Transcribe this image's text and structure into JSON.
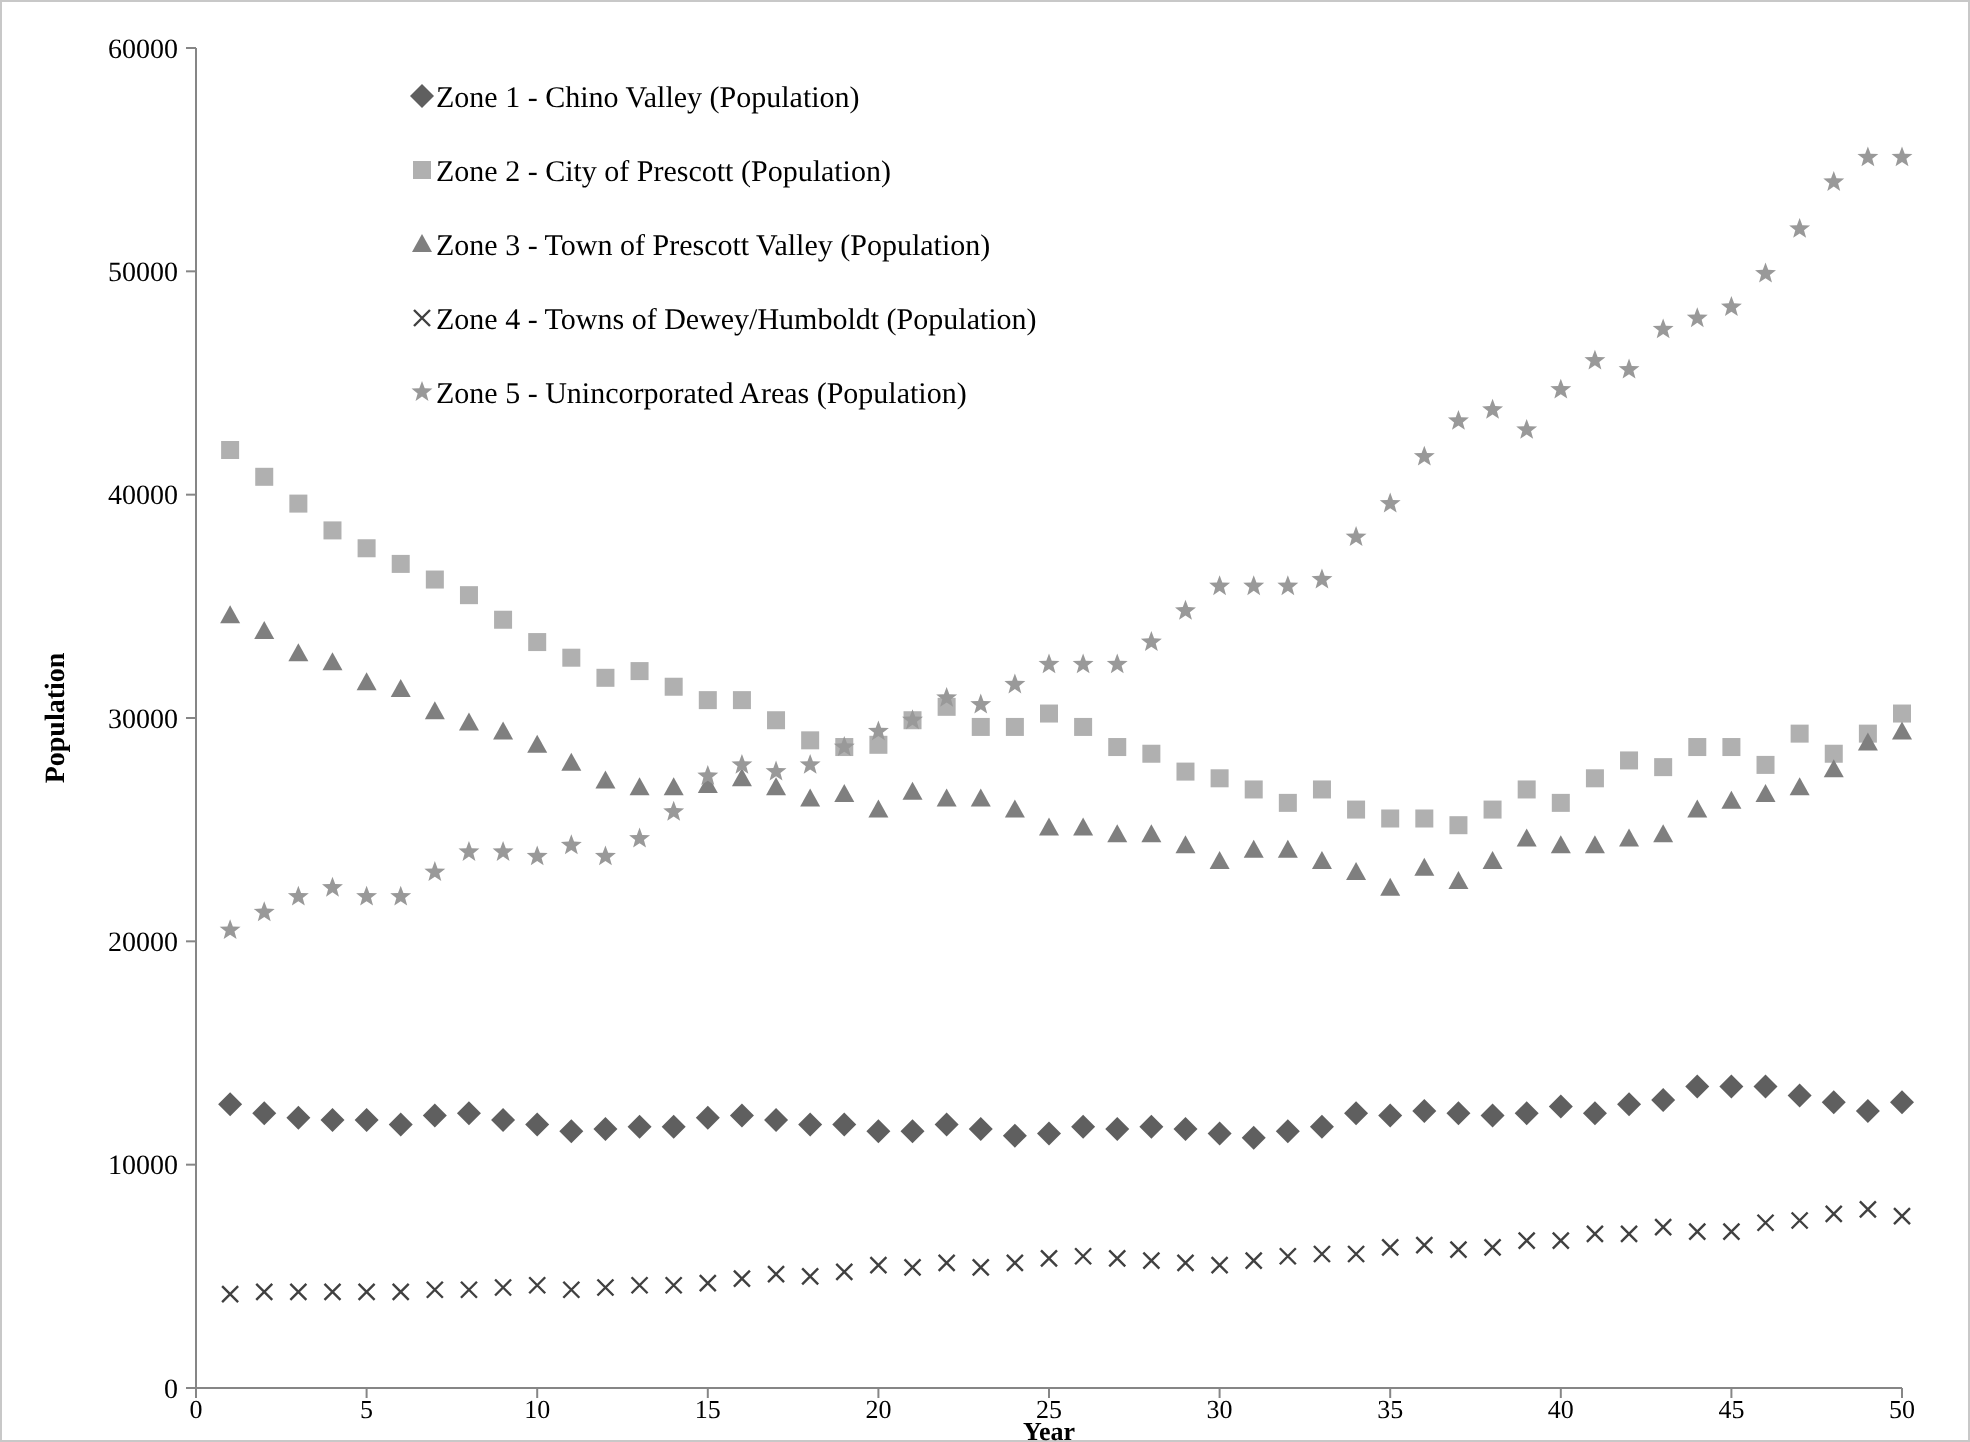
{
  "chart_data": {
    "type": "scatter",
    "xlabel": "Year",
    "ylabel": "Population",
    "x": [
      1,
      2,
      3,
      4,
      5,
      6,
      7,
      8,
      9,
      10,
      11,
      12,
      13,
      14,
      15,
      16,
      17,
      18,
      19,
      20,
      21,
      22,
      23,
      24,
      25,
      26,
      27,
      28,
      29,
      30,
      31,
      32,
      33,
      34,
      35,
      36,
      37,
      38,
      39,
      40,
      41,
      42,
      43,
      44,
      45,
      46,
      47,
      48,
      49,
      50
    ],
    "xlim": [
      0,
      50
    ],
    "xticks": [
      0,
      5,
      10,
      15,
      20,
      25,
      30,
      35,
      40,
      45,
      50
    ],
    "ylim": [
      0,
      60000
    ],
    "yticks": [
      0,
      10000,
      20000,
      30000,
      40000,
      50000,
      60000
    ],
    "grid": false,
    "legend": "top left",
    "series": [
      {
        "name": "Zone 1 - Chino Valley (Population)",
        "color": "#5f5f5f",
        "marker": "diamond",
        "values": [
          12700,
          12300,
          12100,
          12000,
          12000,
          11800,
          12200,
          12300,
          12000,
          11800,
          11500,
          11600,
          11700,
          11700,
          12100,
          12200,
          12000,
          11800,
          11800,
          11500,
          11500,
          11800,
          11600,
          11300,
          11400,
          11700,
          11600,
          11700,
          11600,
          11400,
          11200,
          11500,
          11700,
          12300,
          12200,
          12400,
          12300,
          12200,
          12300,
          12600,
          12300,
          12700,
          12900,
          13500,
          13500,
          13500,
          13100,
          12800,
          12400,
          12800
        ]
      },
      {
        "name": "Zone 2 - City of Prescott (Population)",
        "color": "#b0b0b0",
        "marker": "square",
        "values": [
          42000,
          40800,
          39600,
          38400,
          37600,
          36900,
          36200,
          35500,
          34400,
          33400,
          32700,
          31800,
          32100,
          31400,
          30800,
          30800,
          29900,
          29000,
          28700,
          28800,
          29900,
          30500,
          29600,
          29600,
          30200,
          29600,
          28700,
          28400,
          27600,
          27300,
          26800,
          26200,
          26800,
          25900,
          25500,
          25500,
          25200,
          25900,
          26800,
          26200,
          27300,
          28100,
          27800,
          28700,
          28700,
          27900,
          29300,
          28400,
          29300,
          30200
        ]
      },
      {
        "name": "Zone 3 - Town of Prescott Valley (Population)",
        "color": "#7f7f7f",
        "marker": "triangle",
        "values": [
          34600,
          33900,
          32900,
          32500,
          31600,
          31300,
          30300,
          29800,
          29400,
          28800,
          28000,
          27200,
          26900,
          26900,
          27000,
          27300,
          26900,
          26400,
          26600,
          25900,
          26700,
          26400,
          26400,
          25900,
          25100,
          25100,
          24800,
          24800,
          24300,
          23600,
          24100,
          24100,
          23600,
          23100,
          22400,
          23300,
          22700,
          23600,
          24600,
          24300,
          24300,
          24600,
          24800,
          25900,
          26300,
          26600,
          26900,
          27700,
          28900,
          29400
        ]
      },
      {
        "name": "Zone 4 - Towns of Dewey/Humboldt (Population)",
        "color": "#404040",
        "marker": "cross",
        "values": [
          4200,
          4300,
          4300,
          4300,
          4300,
          4300,
          4400,
          4400,
          4500,
          4600,
          4400,
          4500,
          4600,
          4600,
          4700,
          4900,
          5100,
          5000,
          5200,
          5500,
          5400,
          5600,
          5400,
          5600,
          5800,
          5900,
          5800,
          5700,
          5600,
          5500,
          5700,
          5900,
          6000,
          6000,
          6300,
          6400,
          6200,
          6300,
          6600,
          6600,
          6900,
          6900,
          7200,
          7000,
          7000,
          7400,
          7500,
          7800,
          8000,
          7700
        ]
      },
      {
        "name": "Zone 5 - Unincorporated Areas (Population)",
        "color": "#999999",
        "marker": "star",
        "values": [
          20500,
          21300,
          22000,
          22400,
          22000,
          22000,
          23100,
          24000,
          24000,
          23800,
          24300,
          23800,
          24600,
          25800,
          27400,
          27900,
          27600,
          27900,
          28700,
          29400,
          29900,
          30900,
          30600,
          31500,
          32400,
          32400,
          32400,
          33400,
          34800,
          35900,
          35900,
          35900,
          36200,
          38100,
          39600,
          41700,
          43300,
          43800,
          42900,
          44700,
          46000,
          45600,
          47400,
          47900,
          48400,
          49900,
          51900,
          54000,
          55100,
          55100
        ]
      }
    ]
  }
}
